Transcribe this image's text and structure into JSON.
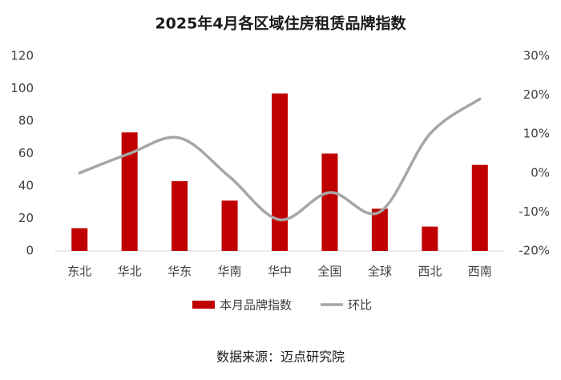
{
  "chart_data": {
    "type": "bar-line",
    "title": "2025年4月各区域住房租赁品牌指数",
    "categories": [
      "东北",
      "华北",
      "华东",
      "华南",
      "华中",
      "全国",
      "全球",
      "西北",
      "西南"
    ],
    "series": [
      {
        "name": "本月品牌指数",
        "type": "bar",
        "color": "#c00000",
        "values": [
          14,
          73,
          43,
          31,
          97,
          60,
          26,
          15,
          53
        ]
      },
      {
        "name": "环比",
        "type": "line",
        "axis": "y2",
        "color": "#a6a6a6",
        "values": [
          0,
          5,
          9,
          -1,
          -12,
          -5,
          -10,
          10,
          19
        ]
      }
    ],
    "ylim": [
      0,
      120
    ],
    "yticks": [
      0,
      20,
      40,
      60,
      80,
      100,
      120
    ],
    "y2lim": [
      -20,
      30
    ],
    "y2ticks": [
      {
        "value": -20,
        "label": "-20%"
      },
      {
        "value": -10,
        "label": "-10%"
      },
      {
        "value": 0,
        "label": "0%"
      },
      {
        "value": 10,
        "label": "10%"
      },
      {
        "value": 20,
        "label": "20%"
      },
      {
        "value": 30,
        "label": "30%"
      }
    ],
    "source": "数据来源：迈点研究院",
    "legend": "bottom"
  }
}
